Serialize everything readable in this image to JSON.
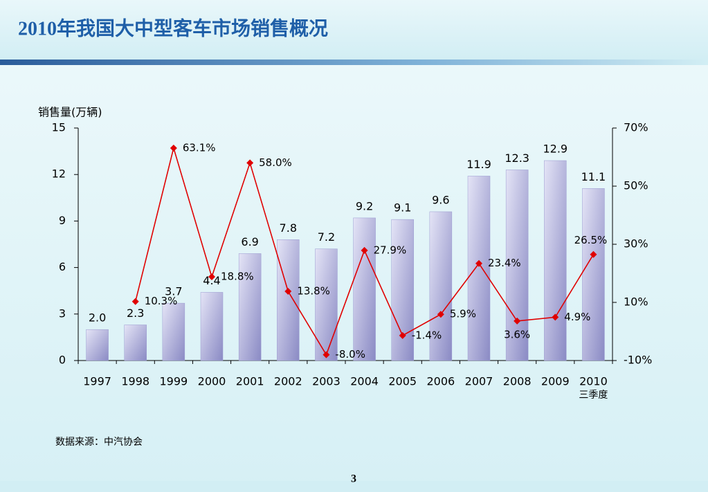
{
  "header": {
    "title": "2010年我国大中型客车市场销售概况"
  },
  "chart_data": {
    "type": "bar_line",
    "y_label": "销售量(万辆)",
    "categories": [
      "1997",
      "1998",
      "1999",
      "2000",
      "2001",
      "2002",
      "2003",
      "2004",
      "2005",
      "2006",
      "2007",
      "2008",
      "2009",
      "2010"
    ],
    "category_subtitles": [
      null,
      null,
      null,
      null,
      null,
      null,
      null,
      null,
      null,
      null,
      null,
      null,
      null,
      "三季度"
    ],
    "series": [
      {
        "type": "bar",
        "color": "#9a9ad0",
        "values": [
          2.0,
          2.3,
          3.7,
          4.4,
          6.9,
          7.8,
          7.2,
          9.2,
          9.1,
          9.6,
          11.9,
          12.3,
          12.9,
          11.1
        ],
        "value_labels": [
          "2.0",
          "2.3",
          "3.7",
          "4.4",
          "6.9",
          "7.8",
          "7.2",
          "9.2",
          "9.1",
          "9.6",
          "11.9",
          "12.3",
          "12.9",
          "11.1"
        ]
      },
      {
        "type": "line",
        "axis": "y2",
        "color": "#e00000",
        "values": [
          null,
          10.3,
          63.1,
          18.8,
          58.0,
          13.8,
          -8.0,
          27.9,
          -1.4,
          5.9,
          23.4,
          3.6,
          4.9,
          26.5
        ],
        "value_labels": [
          null,
          "10.3%",
          "63.1%",
          "18.8%",
          "58.0%",
          "13.8%",
          "-8.0%",
          "27.9%",
          "-1.4%",
          "5.9%",
          "23.4%",
          "3.6%",
          "4.9%",
          "26.5%"
        ]
      }
    ],
    "ylim": [
      0,
      15
    ],
    "yticks": [
      0,
      3,
      6,
      9,
      12,
      15
    ],
    "y2lim": [
      -10,
      70
    ],
    "y2ticks": [
      {
        "value": -10,
        "label": "-10%"
      },
      {
        "value": 10,
        "label": "10%"
      },
      {
        "value": 30,
        "label": "30%"
      },
      {
        "value": 50,
        "label": "50%"
      },
      {
        "value": 70,
        "label": "70%"
      }
    ]
  },
  "footer": {
    "source": "数据来源：中汽协会",
    "page": "3"
  }
}
